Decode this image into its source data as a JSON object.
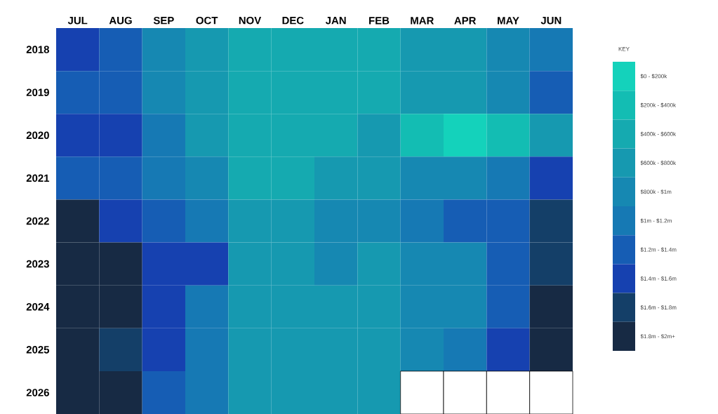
{
  "chart_data": {
    "type": "heatmap",
    "clabel": "KEY",
    "categories": [
      "JUL",
      "AUG",
      "SEP",
      "OCT",
      "NOV",
      "DEC",
      "JAN",
      "FEB",
      "MAR",
      "APR",
      "MAY",
      "JUN"
    ],
    "y_categories": [
      "2018",
      "2019",
      "2020",
      "2021",
      "2022",
      "2023",
      "2024",
      "2025",
      "2026"
    ],
    "cells": [
      [
        1500,
        1300,
        900,
        700,
        500,
        500,
        500,
        500,
        700,
        700,
        900,
        1100
      ],
      [
        1300,
        1300,
        900,
        700,
        500,
        500,
        500,
        500,
        700,
        700,
        900,
        1300
      ],
      [
        1500,
        1500,
        1100,
        700,
        500,
        500,
        500,
        700,
        300,
        100,
        300,
        700
      ],
      [
        1300,
        1300,
        1100,
        900,
        500,
        500,
        700,
        700,
        900,
        900,
        1100,
        1500
      ],
      [
        1900,
        1500,
        1300,
        1100,
        700,
        700,
        900,
        900,
        1100,
        1300,
        1300,
        1700
      ],
      [
        1900,
        1900,
        1500,
        1500,
        700,
        700,
        900,
        700,
        900,
        900,
        1300,
        1700
      ],
      [
        1900,
        1900,
        1500,
        1100,
        700,
        700,
        700,
        700,
        900,
        900,
        1300,
        1900
      ],
      [
        1900,
        1700,
        1500,
        1100,
        700,
        700,
        700,
        700,
        900,
        1100,
        1500,
        1900
      ],
      [
        1900,
        1900,
        1300,
        1100,
        700,
        700,
        700,
        700,
        null,
        null,
        null,
        null
      ]
    ],
    "clim": [
      0,
      2000
    ],
    "cticks": [
      {
        "value": 100,
        "label": "$0 - $200k"
      },
      {
        "value": 300,
        "label": "$200k - $400k"
      },
      {
        "value": 500,
        "label": "$400k - $600k"
      },
      {
        "value": 700,
        "label": "$600k - $800k"
      },
      {
        "value": 900,
        "label": "$800k - $1m"
      },
      {
        "value": 1100,
        "label": "$1m - $1.2m"
      },
      {
        "value": 1300,
        "label": "$1.2m - $1.4m"
      },
      {
        "value": 1500,
        "label": "$1.4m - $1.6m"
      },
      {
        "value": 1700,
        "label": "$1.6m - $1.8m"
      },
      {
        "value": 1900,
        "label": "$1.8m - $2m+"
      }
    ],
    "colors": [
      "#14d2bb",
      "#13bdb3",
      "#15aab0",
      "#1699b0",
      "#1688b2",
      "#1679b4",
      "#165db4",
      "#1641b0",
      "#143f68",
      "#172a44"
    ]
  }
}
